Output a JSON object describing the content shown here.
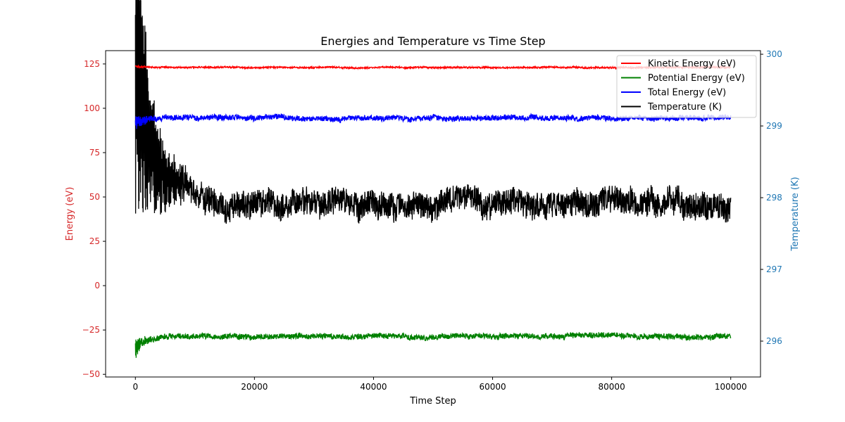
{
  "chart_data": {
    "type": "line",
    "title": "Energies and Temperature vs Time Step",
    "xlabel": "Time Step",
    "ylabel_left": "Energy (eV)",
    "ylabel_right": "Temperature (K)",
    "xlim": [
      -5000,
      105000
    ],
    "ylim_left": [
      -51.5,
      132.5
    ],
    "ylim_right": [
      295.5,
      300.05
    ],
    "x_ticks": [
      0,
      20000,
      40000,
      60000,
      80000,
      100000
    ],
    "y_ticks_left": [
      -50,
      -25,
      0,
      25,
      50,
      75,
      100,
      125
    ],
    "y_ticks_right": [
      296,
      297,
      298,
      299,
      300
    ],
    "left_axis_color": "#d62728",
    "right_axis_color": "#1f77b4",
    "grid": false,
    "legend_position": "top-right",
    "series": [
      {
        "name": "Kinetic Energy (eV)",
        "color": "#ff0000",
        "axis": "left",
        "start": 124,
        "settle": 123,
        "decay": 800,
        "noise": 0.4,
        "env": 0.2
      },
      {
        "name": "Potential Energy (eV)",
        "color": "#008000",
        "axis": "left",
        "start": -36,
        "settle": -28.5,
        "decay": 1500,
        "noise": 1.5,
        "env": 5
      },
      {
        "name": "Total Energy (eV)",
        "color": "#0000ff",
        "axis": "left",
        "start": 92,
        "settle": 94.5,
        "decay": 1500,
        "noise": 1.5,
        "env": 4
      },
      {
        "name": "Temperature (K)",
        "color": "#000000",
        "axis": "right",
        "start": 299.9,
        "settle": 297.93,
        "decay": 3000,
        "noise": 0.18,
        "env": 2.1
      }
    ]
  }
}
